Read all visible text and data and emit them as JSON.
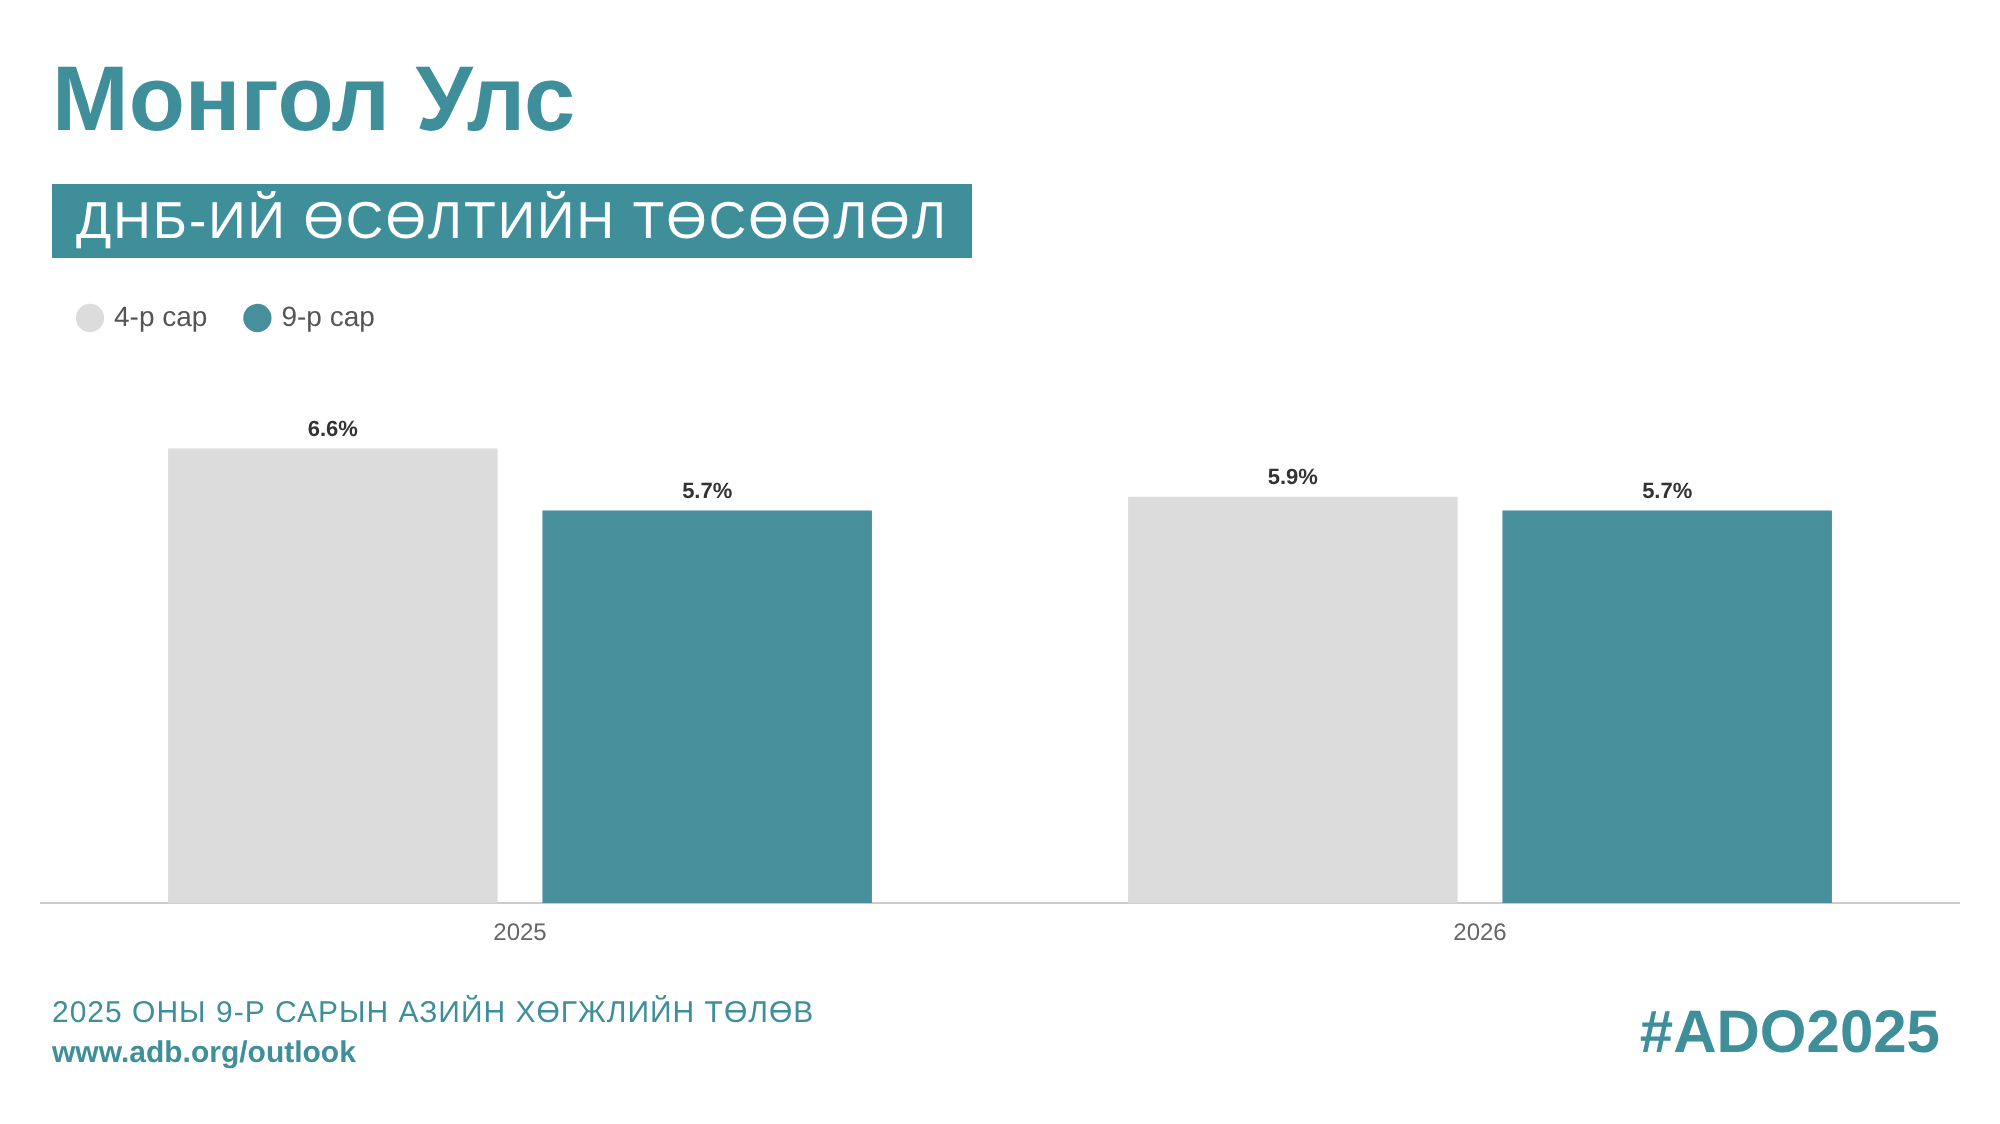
{
  "chart_data": {
    "type": "bar",
    "title": "Монгол Улс",
    "subtitle": "ДНБ-ИЙ ӨСӨЛТИЙН ТӨСӨӨЛӨЛ",
    "categories": [
      "2025",
      "2026"
    ],
    "series": [
      {
        "name": "4-р сар",
        "color": "#dcdcdc",
        "values": [
          6.6,
          5.9
        ],
        "value_labels": [
          "6.6%",
          "5.9%"
        ]
      },
      {
        "name": "9-р сар",
        "color": "#488f9c",
        "values": [
          5.7,
          5.7
        ],
        "value_labels": [
          "5.7%",
          "5.7%"
        ]
      }
    ],
    "legend": "top left",
    "annotations": [
      "2025 ОНЫ 9-Р САРЫН АЗИЙН ХӨГЖЛИЙН ТӨЛӨВ",
      "www.adb.org/outlook",
      "#ADO2025"
    ]
  }
}
